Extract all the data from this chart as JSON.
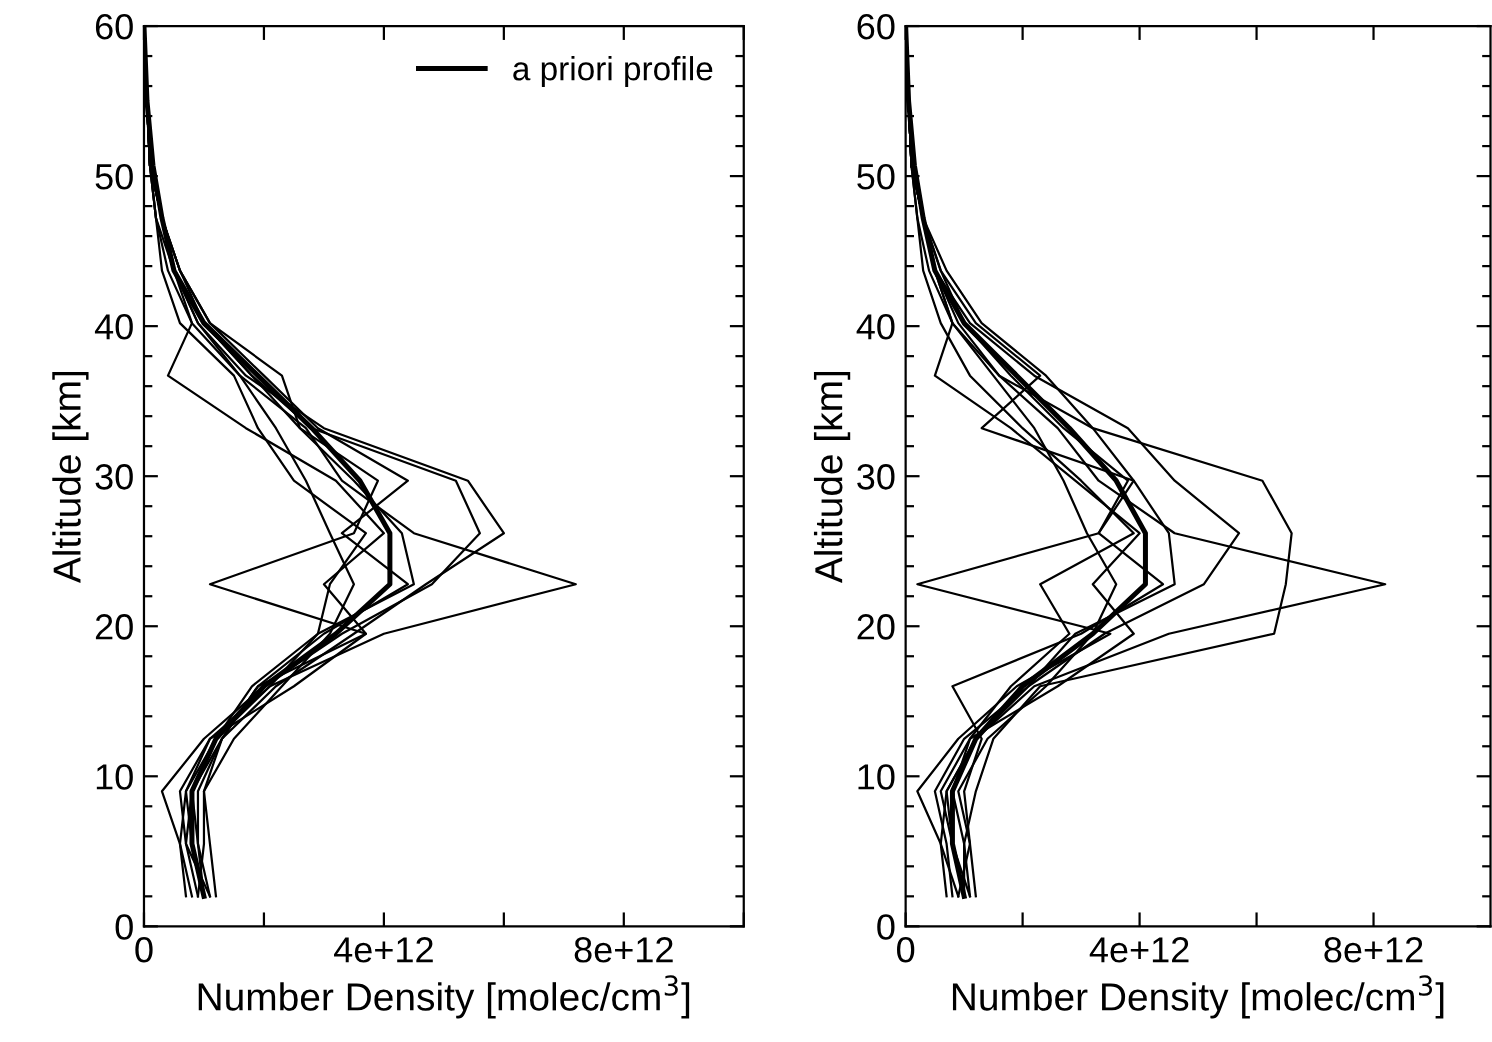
{
  "chart_data": [
    {
      "type": "line",
      "xlabel": "Number Density [molec/cm$^{3}$]",
      "ylabel": "Altitude [km]",
      "xlim": [
        0,
        10000000000000.0
      ],
      "ylim": [
        0,
        60
      ],
      "xticks": [
        {
          "value": 0,
          "label": "0"
        },
        {
          "value": 2000000000000.0,
          "label": null
        },
        {
          "value": 4000000000000.0,
          "label": "4e+12"
        },
        {
          "value": 6000000000000.0,
          "label": null
        },
        {
          "value": 8000000000000.0,
          "label": "8e+12"
        },
        {
          "value": 10000000000000.0,
          "label": null
        }
      ],
      "yticks": [
        0,
        {
          "value": 2,
          "label": null
        },
        {
          "value": 4,
          "label": null
        },
        {
          "value": 6,
          "label": null
        },
        {
          "value": 8,
          "label": null
        },
        10,
        {
          "value": 12,
          "label": null
        },
        {
          "value": 14,
          "label": null
        },
        {
          "value": 16,
          "label": null
        },
        {
          "value": 18,
          "label": null
        },
        20,
        {
          "value": 22,
          "label": null
        },
        {
          "value": 24,
          "label": null
        },
        {
          "value": 26,
          "label": null
        },
        {
          "value": 28,
          "label": null
        },
        30,
        {
          "value": 32,
          "label": null
        },
        {
          "value": 34,
          "label": null
        },
        {
          "value": 36,
          "label": null
        },
        {
          "value": 38,
          "label": null
        },
        40,
        {
          "value": 42,
          "label": null
        },
        {
          "value": 44,
          "label": null
        },
        {
          "value": 46,
          "label": null
        },
        {
          "value": 48,
          "label": null
        },
        50,
        {
          "value": 52,
          "label": null
        },
        {
          "value": 54,
          "label": null
        },
        {
          "value": 56,
          "label": null
        },
        {
          "value": 58,
          "label": null
        },
        60
      ],
      "legend": "top right",
      "grid": false,
      "marker": "none",
      "line_style": "solid",
      "series": [
        {
          "name": "a priori profile",
          "color": "#000000",
          "x": [
            1000000000000.0,
            800000000000.0,
            800000000000.0,
            1200000000000.0,
            2000000000000.0,
            3200000000000.0,
            4100000000000.0,
            4100000000000.0,
            3600000000000.0,
            2800000000000.0,
            1900000000000.0,
            1000000000000.0,
            500000000000.0,
            300000000000.0,
            150000000000.0,
            50000000000.0,
            0
          ],
          "values": [
            2,
            5.5,
            9,
            12.5,
            16,
            19.5,
            22.8,
            26.2,
            29.7,
            33.2,
            36.7,
            40.2,
            43.7,
            47.2,
            50.7,
            55,
            60
          ]
        },
        {
          "color": "#000000",
          "x": [
            1100000000000.0,
            700000000000.0,
            600000000000.0,
            1100000000000.0,
            2100000000000.0,
            4000000000000.0,
            7200000000000.0,
            4500000000000.0,
            3300000000000.0,
            2700000000000.0,
            1600000000000.0,
            900000000000.0,
            500000000000.0,
            300000000000.0,
            100000000000.0,
            50000000000.0,
            0
          ],
          "values": [
            2,
            5.5,
            9,
            12.5,
            16,
            19.5,
            22.8,
            26.2,
            29.7,
            33.2,
            36.7,
            40.2,
            43.7,
            47.2,
            50.7,
            55,
            60
          ]
        },
        {
          "color": "#000000",
          "x": [
            900000000000.0,
            700000000000.0,
            800000000000.0,
            1300000000000.0,
            1900000000000.0,
            3700000000000.0,
            1100000000000.0,
            3500000000000.0,
            3900000000000.0,
            2600000000000.0,
            1800000000000.0,
            1000000000000.0,
            600000000000.0,
            300000000000.0,
            100000000000.0,
            50000000000.0,
            0
          ],
          "values": [
            2,
            5.5,
            9,
            12.5,
            16,
            19.5,
            22.8,
            26.2,
            29.7,
            33.2,
            36.7,
            40.2,
            43.7,
            47.2,
            50.7,
            55,
            60
          ]
        },
        {
          "color": "#000000",
          "x": [
            1000000000000.0,
            900000000000.0,
            900000000000.0,
            1300000000000.0,
            2200000000000.0,
            3500000000000.0,
            4700000000000.0,
            6000000000000.0,
            5400000000000.0,
            3000000000000.0,
            1700000000000.0,
            900000000000.0,
            500000000000.0,
            300000000000.0,
            100000000000.0,
            50000000000.0,
            0
          ],
          "values": [
            2,
            5.5,
            9,
            12.5,
            16,
            19.5,
            22.8,
            26.2,
            29.7,
            33.2,
            36.7,
            40.2,
            43.7,
            47.2,
            50.7,
            55,
            60
          ]
        },
        {
          "color": "#000000",
          "x": [
            800000000000.0,
            600000000000.0,
            300000000000.0,
            1000000000000.0,
            2000000000000.0,
            3300000000000.0,
            4800000000000.0,
            5600000000000.0,
            5200000000000.0,
            2800000000000.0,
            1800000000000.0,
            1000000000000.0,
            500000000000.0,
            200000000000.0,
            100000000000.0,
            50000000000.0,
            0
          ],
          "values": [
            2,
            5.5,
            9,
            12.5,
            16,
            19.5,
            22.8,
            26.2,
            29.7,
            33.2,
            36.7,
            40.2,
            43.7,
            47.2,
            50.7,
            55,
            60
          ]
        },
        {
          "color": "#000000",
          "x": [
            1100000000000.0,
            900000000000.0,
            800000000000.0,
            1200000000000.0,
            1800000000000.0,
            2900000000000.0,
            3100000000000.0,
            3700000000000.0,
            2500000000000.0,
            1900000000000.0,
            1500000000000.0,
            600000000000.0,
            300000000000.0,
            200000000000.0,
            100000000000.0,
            50000000000.0,
            0
          ],
          "values": [
            2,
            5.5,
            9,
            12.5,
            16,
            19.5,
            22.8,
            26.2,
            29.7,
            33.2,
            36.7,
            40.2,
            43.7,
            47.2,
            50.7,
            55,
            60
          ]
        },
        {
          "color": "#000000",
          "x": [
            900000000000.0,
            1000000000000.0,
            1000000000000.0,
            1300000000000.0,
            1900000000000.0,
            3000000000000.0,
            4400000000000.0,
            3300000000000.0,
            4400000000000.0,
            2900000000000.0,
            2000000000000.0,
            1100000000000.0,
            600000000000.0,
            300000000000.0,
            150000000000.0,
            50000000000.0,
            0
          ],
          "values": [
            2,
            5.5,
            9,
            12.5,
            16,
            19.5,
            22.8,
            26.2,
            29.7,
            33.2,
            36.7,
            40.2,
            43.7,
            47.2,
            50.7,
            55,
            60
          ]
        },
        {
          "color": "#000000",
          "x": [
            1000000000000.0,
            800000000000.0,
            700000000000.0,
            1100000000000.0,
            2500000000000.0,
            3700000000000.0,
            3000000000000.0,
            4000000000000.0,
            3200000000000.0,
            1700000000000.0,
            400000000000.0,
            800000000000.0,
            500000000000.0,
            300000000000.0,
            100000000000.0,
            50000000000.0,
            0
          ],
          "values": [
            2,
            5.5,
            9,
            12.5,
            16,
            19.5,
            22.8,
            26.2,
            29.7,
            33.2,
            36.7,
            40.2,
            43.7,
            47.2,
            50.7,
            55,
            60
          ]
        },
        {
          "color": "#000000",
          "x": [
            700000000000.0,
            600000000000.0,
            700000000000.0,
            1200000000000.0,
            2100000000000.0,
            2900000000000.0,
            4500000000000.0,
            4300000000000.0,
            3500000000000.0,
            2600000000000.0,
            2300000000000.0,
            1100000000000.0,
            600000000000.0,
            300000000000.0,
            100000000000.0,
            50000000000.0,
            0
          ],
          "values": [
            2,
            5.5,
            9,
            12.5,
            16,
            19.5,
            22.8,
            26.2,
            29.7,
            33.2,
            36.7,
            40.2,
            43.7,
            47.2,
            50.7,
            55,
            60
          ]
        },
        {
          "color": "#000000",
          "x": [
            1200000000000.0,
            1100000000000.0,
            1000000000000.0,
            1500000000000.0,
            2300000000000.0,
            3100000000000.0,
            3500000000000.0,
            3100000000000.0,
            2700000000000.0,
            2200000000000.0,
            1600000000000.0,
            800000000000.0,
            400000000000.0,
            200000000000.0,
            100000000000.0,
            50000000000.0,
            0
          ],
          "values": [
            2,
            5.5,
            9,
            12.5,
            16,
            19.5,
            22.8,
            26.2,
            29.7,
            33.2,
            36.7,
            40.2,
            43.7,
            47.2,
            50.7,
            55,
            60
          ]
        }
      ]
    },
    {
      "type": "line",
      "xlabel": "Number Density [molec/cm$^{3}$]",
      "ylabel": "Altitude [km]",
      "xlim": [
        0,
        10000000000000.0
      ],
      "ylim": [
        0,
        60
      ],
      "xticks": [
        {
          "value": 0,
          "label": "0"
        },
        {
          "value": 2000000000000.0,
          "label": null
        },
        {
          "value": 4000000000000.0,
          "label": "4e+12"
        },
        {
          "value": 6000000000000.0,
          "label": null
        },
        {
          "value": 8000000000000.0,
          "label": "8e+12"
        }
      ],
      "yticks": [
        0,
        {
          "value": 2,
          "label": null
        },
        {
          "value": 4,
          "label": null
        },
        {
          "value": 6,
          "label": null
        },
        {
          "value": 8,
          "label": null
        },
        10,
        {
          "value": 12,
          "label": null
        },
        {
          "value": 14,
          "label": null
        },
        {
          "value": 16,
          "label": null
        },
        {
          "value": 18,
          "label": null
        },
        20,
        {
          "value": 22,
          "label": null
        },
        {
          "value": 24,
          "label": null
        },
        {
          "value": 26,
          "label": null
        },
        {
          "value": 28,
          "label": null
        },
        30,
        {
          "value": 32,
          "label": null
        },
        {
          "value": 34,
          "label": null
        },
        {
          "value": 36,
          "label": null
        },
        {
          "value": 38,
          "label": null
        },
        40,
        {
          "value": 42,
          "label": null
        },
        {
          "value": 44,
          "label": null
        },
        {
          "value": 46,
          "label": null
        },
        {
          "value": 48,
          "label": null
        },
        50,
        {
          "value": 52,
          "label": null
        },
        {
          "value": 54,
          "label": null
        },
        {
          "value": 56,
          "label": null
        },
        {
          "value": 58,
          "label": null
        },
        60
      ],
      "grid": false,
      "marker": "none",
      "line_style": "solid",
      "series": [
        {
          "color": "#000000",
          "x": [
            1000000000000.0,
            800000000000.0,
            800000000000.0,
            1200000000000.0,
            2000000000000.0,
            3200000000000.0,
            4100000000000.0,
            4100000000000.0,
            3600000000000.0,
            2800000000000.0,
            1900000000000.0,
            1000000000000.0,
            500000000000.0,
            300000000000.0,
            150000000000.0,
            50000000000.0,
            0
          ],
          "values": [
            2,
            5.5,
            9,
            12.5,
            16,
            19.5,
            22.8,
            26.2,
            29.7,
            33.2,
            36.7,
            40.2,
            43.7,
            47.2,
            50.7,
            55,
            60
          ]
        },
        {
          "color": "#000000",
          "x": [
            1100000000000.0,
            800000000000.0,
            700000000000.0,
            1200000000000.0,
            2200000000000.0,
            4500000000000.0,
            8200000000000.0,
            4600000000000.0,
            3300000000000.0,
            2600000000000.0,
            1600000000000.0,
            900000000000.0,
            500000000000.0,
            300000000000.0,
            100000000000.0,
            50000000000.0,
            0
          ],
          "values": [
            2,
            5.5,
            9,
            12.5,
            16,
            19.5,
            22.8,
            26.2,
            29.7,
            33.2,
            36.7,
            40.2,
            43.7,
            47.2,
            50.7,
            55,
            60
          ]
        },
        {
          "color": "#000000",
          "x": [
            900000000000.0,
            600000000000.0,
            200000000000.0,
            900000000000.0,
            1900000000000.0,
            3500000000000.0,
            200000000000.0,
            3300000000000.0,
            3800000000000.0,
            2700000000000.0,
            1800000000000.0,
            1000000000000.0,
            600000000000.0,
            300000000000.0,
            100000000000.0,
            50000000000.0,
            0
          ],
          "values": [
            2,
            5.5,
            9,
            12.5,
            16,
            19.5,
            22.8,
            26.2,
            29.7,
            33.2,
            36.7,
            40.2,
            43.7,
            47.2,
            50.7,
            55,
            60
          ]
        },
        {
          "color": "#000000",
          "x": [
            1000000000000.0,
            1000000000000.0,
            1200000000000.0,
            1500000000000.0,
            2300000000000.0,
            6300000000000.0,
            6500000000000.0,
            6600000000000.0,
            6100000000000.0,
            3200000000000.0,
            1600000000000.0,
            800000000000.0,
            500000000000.0,
            300000000000.0,
            100000000000.0,
            50000000000.0,
            0
          ],
          "values": [
            2,
            5.5,
            9,
            12.5,
            16,
            19.5,
            22.8,
            26.2,
            29.7,
            33.2,
            36.7,
            40.2,
            43.7,
            47.2,
            50.7,
            55,
            60
          ]
        },
        {
          "color": "#000000",
          "x": [
            800000000000.0,
            700000000000.0,
            500000000000.0,
            1000000000000.0,
            2100000000000.0,
            3400000000000.0,
            5100000000000.0,
            5700000000000.0,
            4600000000000.0,
            3800000000000.0,
            2200000000000.0,
            1100000000000.0,
            500000000000.0,
            300000000000.0,
            100000000000.0,
            50000000000.0,
            0
          ],
          "values": [
            2,
            5.5,
            9,
            12.5,
            16,
            19.5,
            22.8,
            26.2,
            29.7,
            33.2,
            36.7,
            40.2,
            43.7,
            47.2,
            50.7,
            55,
            60
          ]
        },
        {
          "color": "#000000",
          "x": [
            1100000000000.0,
            1000000000000.0,
            800000000000.0,
            1100000000000.0,
            1800000000000.0,
            2800000000000.0,
            2300000000000.0,
            3900000000000.0,
            3000000000000.0,
            2000000000000.0,
            1100000000000.0,
            600000000000.0,
            300000000000.0,
            200000000000.0,
            100000000000.0,
            50000000000.0,
            0
          ],
          "values": [
            2,
            5.5,
            9,
            12.5,
            16,
            19.5,
            22.8,
            26.2,
            29.7,
            33.2,
            36.7,
            40.2,
            43.7,
            47.2,
            50.7,
            55,
            60
          ]
        },
        {
          "color": "#000000",
          "x": [
            900000000000.0,
            1100000000000.0,
            1000000000000.0,
            1300000000000.0,
            800000000000.0,
            3000000000000.0,
            4400000000000.0,
            3300000000000.0,
            3900000000000.0,
            1300000000000.0,
            2300000000000.0,
            1200000000000.0,
            600000000000.0,
            300000000000.0,
            150000000000.0,
            50000000000.0,
            0
          ],
          "values": [
            2,
            5.5,
            9,
            12.5,
            16,
            19.5,
            22.8,
            26.2,
            29.7,
            33.2,
            36.7,
            40.2,
            43.7,
            47.2,
            50.7,
            55,
            60
          ]
        },
        {
          "color": "#000000",
          "x": [
            1000000000000.0,
            800000000000.0,
            600000000000.0,
            1100000000000.0,
            2600000000000.0,
            3900000000000.0,
            3200000000000.0,
            4000000000000.0,
            2900000000000.0,
            1800000000000.0,
            500000000000.0,
            800000000000.0,
            500000000000.0,
            300000000000.0,
            100000000000.0,
            50000000000.0,
            0
          ],
          "values": [
            2,
            5.5,
            9,
            12.5,
            16,
            19.5,
            22.8,
            26.2,
            29.7,
            33.2,
            36.7,
            40.2,
            43.7,
            47.2,
            50.7,
            55,
            60
          ]
        },
        {
          "color": "#000000",
          "x": [
            700000000000.0,
            600000000000.0,
            700000000000.0,
            1200000000000.0,
            2100000000000.0,
            2900000000000.0,
            4600000000000.0,
            4500000000000.0,
            3900000000000.0,
            3200000000000.0,
            2400000000000.0,
            1300000000000.0,
            700000000000.0,
            300000000000.0,
            100000000000.0,
            50000000000.0,
            0
          ],
          "values": [
            2,
            5.5,
            9,
            12.5,
            16,
            19.5,
            22.8,
            26.2,
            29.7,
            33.2,
            36.7,
            40.2,
            43.7,
            47.2,
            50.7,
            55,
            60
          ]
        },
        {
          "color": "#000000",
          "x": [
            1200000000000.0,
            1100000000000.0,
            900000000000.0,
            1400000000000.0,
            2400000000000.0,
            3200000000000.0,
            3600000000000.0,
            3100000000000.0,
            2700000000000.0,
            2200000000000.0,
            1500000000000.0,
            800000000000.0,
            400000000000.0,
            200000000000.0,
            100000000000.0,
            50000000000.0,
            0
          ],
          "values": [
            2,
            5.5,
            9,
            12.5,
            16,
            19.5,
            22.8,
            26.2,
            29.7,
            33.2,
            36.7,
            40.2,
            43.7,
            47.2,
            50.7,
            55,
            60
          ]
        }
      ]
    }
  ]
}
